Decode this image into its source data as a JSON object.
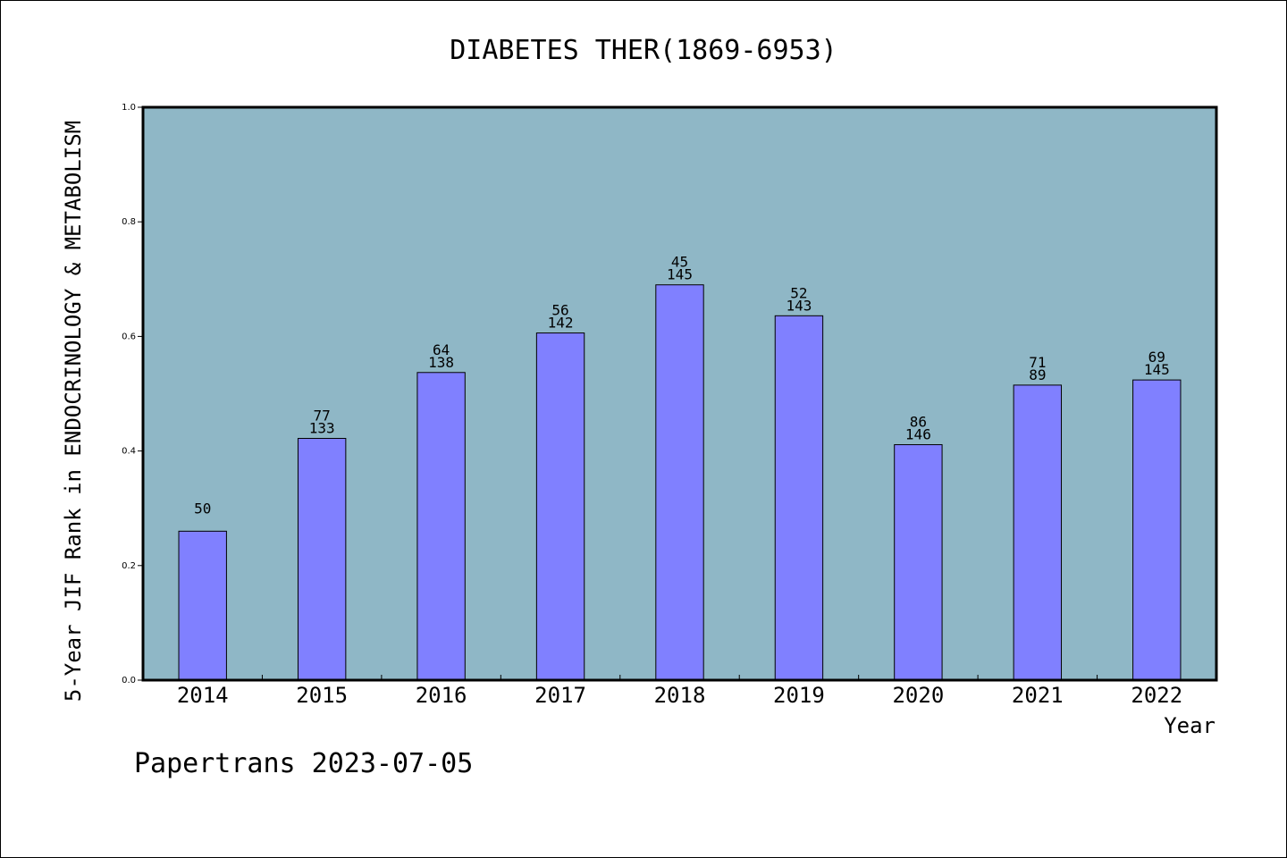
{
  "chart_data": {
    "type": "bar",
    "title": "DIABETES THER(1869-6953)",
    "xlabel": "Year",
    "ylabel": "5-Year JIF Rank in ENDOCRINOLOGY & METABOLISM",
    "ylim": [
      0,
      1.0
    ],
    "yticks": [
      "0.0",
      "0.2",
      "0.4",
      "0.6",
      "0.8",
      "1.0"
    ],
    "categories": [
      "2014",
      "2015",
      "2016",
      "2017",
      "2018",
      "2019",
      "2020",
      "2021",
      "2022"
    ],
    "values": [
      0.26,
      0.422,
      0.537,
      0.606,
      0.69,
      0.636,
      0.411,
      0.515,
      0.524
    ],
    "labels_top": [
      "",
      "77",
      "64",
      "56",
      "45",
      "52",
      "86",
      "71",
      "69"
    ],
    "labels_bottom": [
      "50",
      "133",
      "138",
      "142",
      "145",
      "143",
      "146",
      "89",
      "145"
    ],
    "bar_color": "#8080ff",
    "plot_background": "#8fb7c6",
    "grid": false
  },
  "footer": "Papertrans 2023-07-05"
}
